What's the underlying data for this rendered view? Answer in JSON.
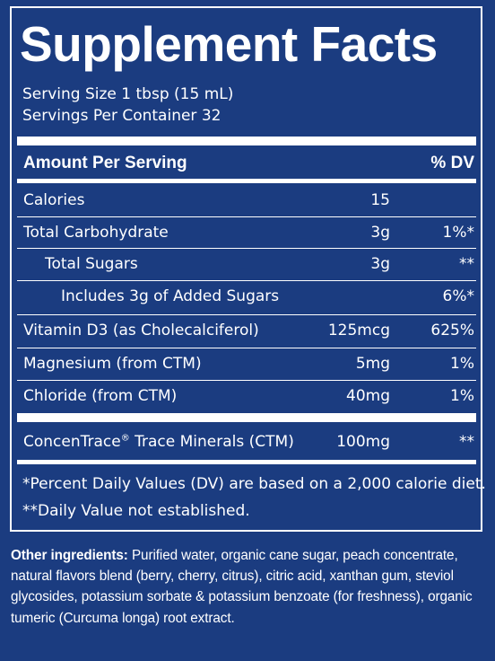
{
  "title": "Supplement Facts",
  "serving_size": "Serving Size 1 tbsp (15 mL)",
  "servings_per_container": "Servings Per Container 32",
  "header": {
    "amount": "Amount Per Serving",
    "dv": "% DV"
  },
  "rows": [
    {
      "name": "Calories",
      "amount": "15",
      "dv": ""
    },
    {
      "name": "Total Carbohydrate",
      "amount": "3g",
      "dv": "1%*"
    },
    {
      "name": "Total Sugars",
      "amount": "3g",
      "dv": "**"
    },
    {
      "name": "Includes 3g of Added Sugars",
      "amount": "",
      "dv": "6%*"
    },
    {
      "name": "Vitamin D3 (as Cholecalciferol)",
      "amount": "125mcg",
      "dv": "625%"
    },
    {
      "name": "Magnesium (from CTM)",
      "amount": "5mg",
      "dv": "1%"
    },
    {
      "name": "Chloride (from CTM)",
      "amount": "40mg",
      "dv": "1%"
    }
  ],
  "ctm_row": {
    "name_prefix": "ConcenTrace",
    "reg_mark": "®",
    "name_suffix": " Trace Minerals (CTM)",
    "amount": "100mg",
    "dv": "**"
  },
  "footnotes": [
    "*Percent Daily Values (DV) are based on a 2,000 calorie diet.",
    "**Daily Value not established."
  ],
  "ingredients": {
    "label": "Other ingredients:",
    "text": " Purified water, organic cane sugar, peach concentrate, natural flavors blend (berry, cherry, citrus), citric acid, xanthan gum, steviol glycosides, potassium sorbate & potassium benzoate (for freshness), organic tumeric (Curcuma longa) root extract."
  }
}
